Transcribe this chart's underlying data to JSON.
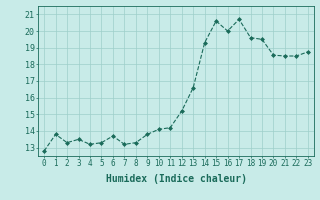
{
  "x": [
    0,
    1,
    2,
    3,
    4,
    5,
    6,
    7,
    8,
    9,
    10,
    11,
    12,
    13,
    14,
    15,
    16,
    17,
    18,
    19,
    20,
    21,
    22,
    23
  ],
  "y": [
    12.8,
    13.8,
    13.3,
    13.5,
    13.2,
    13.3,
    13.7,
    13.2,
    13.3,
    13.8,
    14.1,
    14.2,
    15.2,
    16.6,
    19.3,
    20.6,
    20.0,
    20.7,
    19.6,
    19.5,
    18.55,
    18.5,
    18.5,
    18.75
  ],
  "line_color": "#1a6b5a",
  "marker_color": "#1a6b5a",
  "bg_color": "#c8ebe8",
  "grid_color": "#9ecfca",
  "xlabel": "Humidex (Indice chaleur)",
  "xlim": [
    -0.5,
    23.5
  ],
  "ylim": [
    12.5,
    21.5
  ],
  "yticks": [
    13,
    14,
    15,
    16,
    17,
    18,
    19,
    20,
    21
  ],
  "xticks": [
    0,
    1,
    2,
    3,
    4,
    5,
    6,
    7,
    8,
    9,
    10,
    11,
    12,
    13,
    14,
    15,
    16,
    17,
    18,
    19,
    20,
    21,
    22,
    23
  ],
  "xlabel_fontsize": 7,
  "ytick_fontsize": 6,
  "xtick_fontsize": 5.5,
  "linewidth": 0.8,
  "markersize": 2.0
}
